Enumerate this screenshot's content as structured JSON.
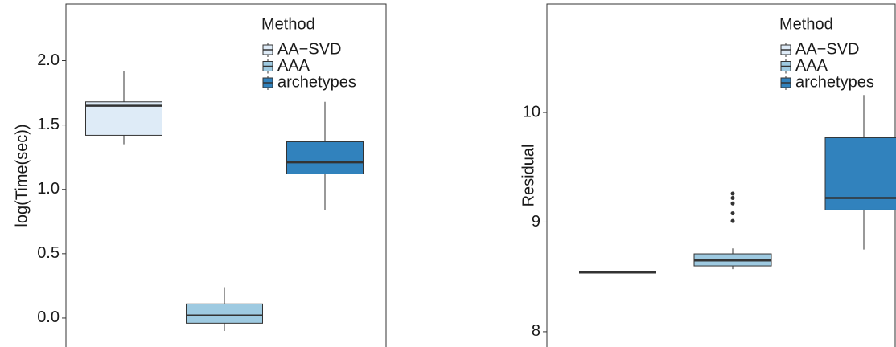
{
  "chart_data": [
    {
      "type": "box",
      "y_label": "log(Time(sec))",
      "legend_title": "Method",
      "ylim": [
        -0.225,
        2.44
      ],
      "yticks": [
        {
          "value": 0,
          "label": "0.0"
        },
        {
          "value": 0.5,
          "label": "0.5"
        },
        {
          "value": 1,
          "label": "1.0"
        },
        {
          "value": 1.5,
          "label": "1.5"
        },
        {
          "value": 2,
          "label": "2.0"
        }
      ],
      "series": [
        {
          "name": "AA−SVD",
          "color": "#deebf7",
          "min": 1.35,
          "q1": 1.42,
          "median": 1.65,
          "q3": 1.68,
          "max": 1.92,
          "outliers": []
        },
        {
          "name": "AAA",
          "color": "#9ecae1",
          "min": -0.1,
          "q1": -0.04,
          "median": 0.02,
          "q3": 0.11,
          "max": 0.24,
          "outliers": []
        },
        {
          "name": "archetypes",
          "color": "#3182bd",
          "min": 0.84,
          "q1": 1.12,
          "median": 1.21,
          "q3": 1.37,
          "max": 1.68,
          "outliers": []
        }
      ]
    },
    {
      "type": "box",
      "y_label": "Residual",
      "legend_title": "Method",
      "ylim": [
        7.86,
        10.99
      ],
      "yticks": [
        8,
        9,
        10
      ],
      "series": [
        {
          "name": "AA−SVD",
          "color": "#deebf7",
          "min": 8.54,
          "q1": 8.54,
          "median": 8.54,
          "q3": 8.54,
          "max": 8.54,
          "outliers": []
        },
        {
          "name": "AAA",
          "color": "#9ecae1",
          "min": 8.57,
          "q1": 8.6,
          "median": 8.65,
          "q3": 8.71,
          "max": 8.76,
          "outliers": [
            9.26,
            9.22,
            9.17,
            9.08,
            9.01
          ]
        },
        {
          "name": "archetypes",
          "color": "#3182bd",
          "min": 8.75,
          "q1": 9.11,
          "median": 9.22,
          "q3": 9.77,
          "max": 10.16,
          "outliers": []
        }
      ]
    }
  ]
}
